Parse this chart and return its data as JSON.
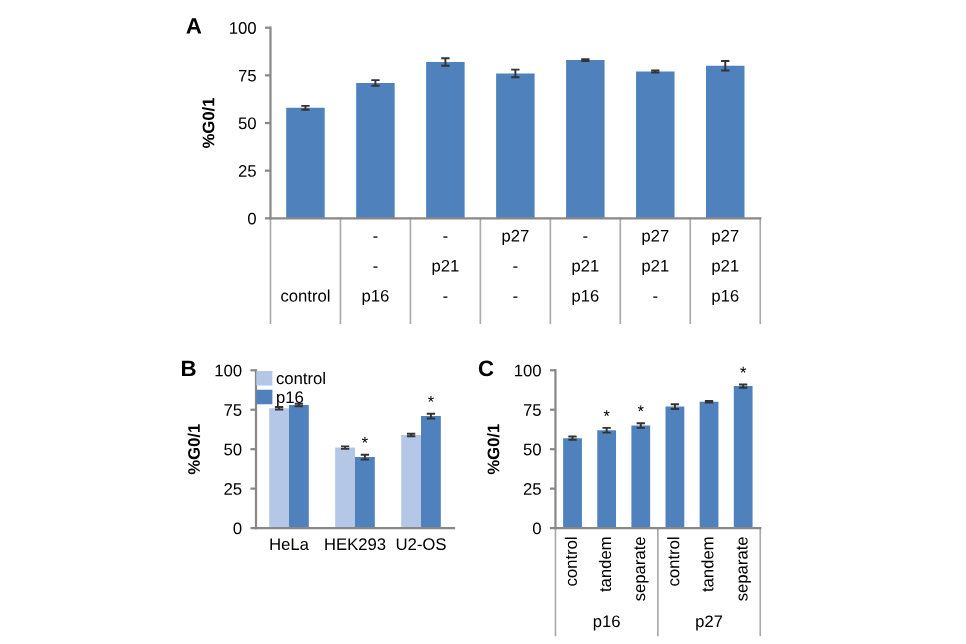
{
  "chart_data": [
    {
      "type": "bar",
      "title": "A",
      "ylabel": "%G0/1",
      "categories": [
        "\n\ncontrol",
        "-\n-\np16",
        "-\np21\n-",
        "p27\n-\n-",
        "-\np21\np16",
        "p27\np21\n-",
        "p27\np21\np16"
      ],
      "values": [
        58,
        71,
        82,
        76,
        83,
        77,
        80
      ],
      "errors": [
        1,
        1.5,
        2,
        2,
        0.5,
        0.5,
        2.5
      ],
      "color": "#4f81bd",
      "ylim": [
        0,
        100
      ],
      "yticks": [
        0,
        25,
        50,
        75,
        100
      ],
      "grid": false,
      "legend": false
    },
    {
      "type": "bar",
      "title": "B",
      "ylabel": "%G0/1",
      "categories": [
        "HeLa",
        "HEK293",
        "U2-OS"
      ],
      "series": [
        {
          "name": "control",
          "color": "#b4c7e7",
          "values": [
            76,
            51,
            59
          ],
          "errors": [
            0.8,
            0.8,
            0.8
          ],
          "value_labels": [
            null,
            null,
            null
          ]
        },
        {
          "name": "p16",
          "color": "#4f81bd",
          "values": [
            78,
            45,
            71
          ],
          "errors": [
            0.8,
            1.5,
            1.5
          ],
          "value_labels": [
            null,
            "*",
            "*"
          ]
        }
      ],
      "ylim": [
        0,
        100
      ],
      "yticks": [
        0,
        25,
        50,
        75,
        100
      ],
      "grid": false,
      "legend": "top left"
    },
    {
      "type": "bar",
      "title": "C",
      "ylabel": "%G0/1",
      "categories": [
        "control",
        "tandem",
        "separate",
        "control",
        "tandem",
        "separate"
      ],
      "values": [
        57,
        62,
        65,
        77,
        80,
        90
      ],
      "errors": [
        1,
        1.5,
        1.5,
        1.5,
        0.5,
        1
      ],
      "value_labels": [
        null,
        "*",
        "*",
        null,
        null,
        "*"
      ],
      "color": "#4f81bd",
      "annotations": [
        "p16",
        "p27"
      ],
      "ylim": [
        0,
        100
      ],
      "yticks": [
        0,
        25,
        50,
        75,
        100
      ],
      "grid": false,
      "legend": false
    }
  ]
}
